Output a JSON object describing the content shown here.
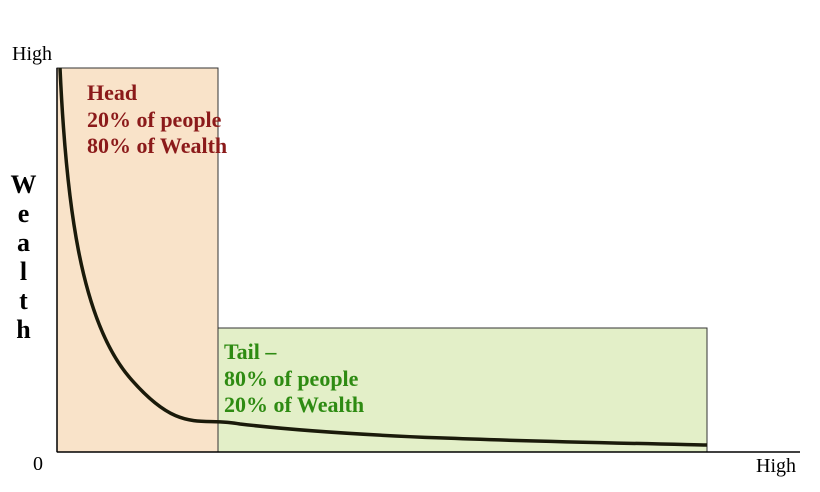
{
  "axes": {
    "y_high": "High",
    "origin": "0",
    "x_high": "High",
    "y_label": "Wealth"
  },
  "head": {
    "lines": [
      "Head",
      "20% of people",
      "80% of Wealth"
    ]
  },
  "tail": {
    "lines": [
      "Tail –",
      "80% of people",
      "20% of Wealth"
    ]
  }
}
